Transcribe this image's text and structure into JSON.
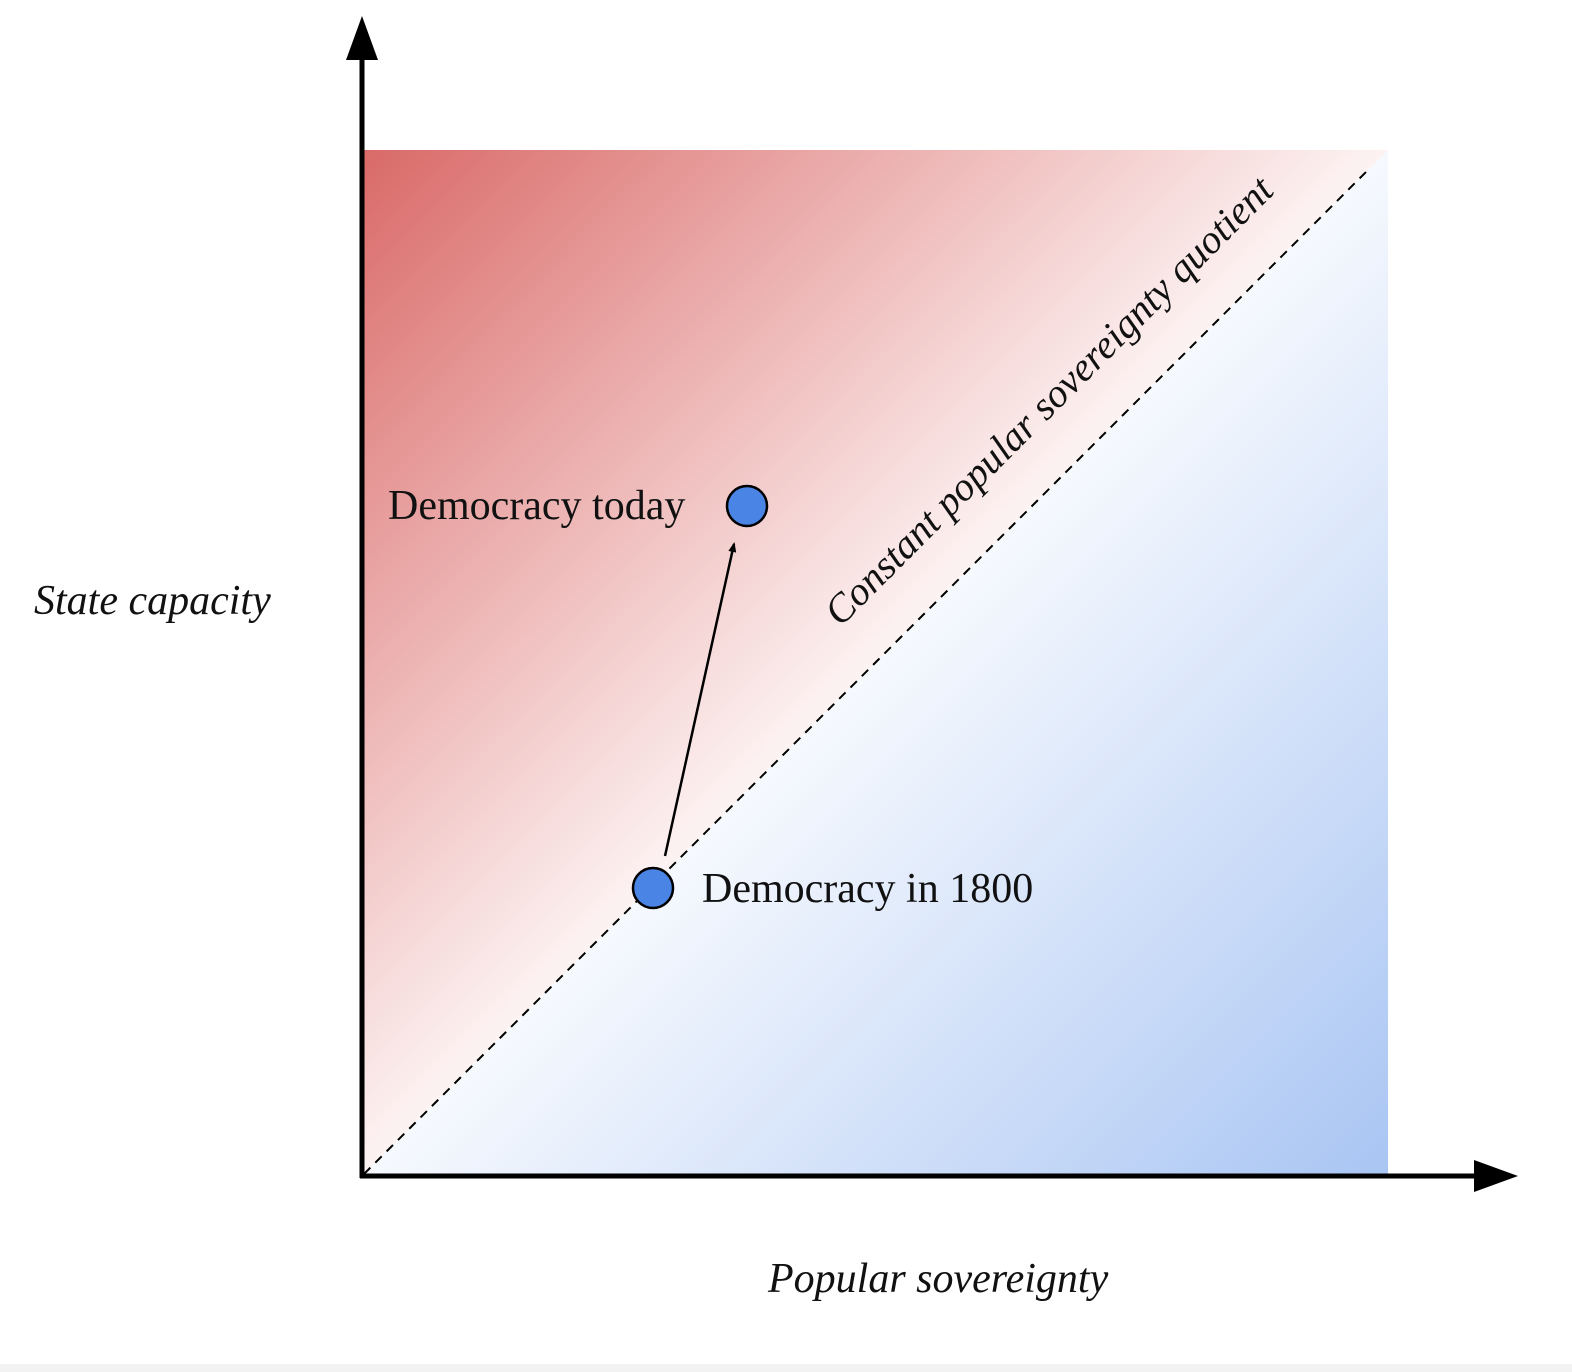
{
  "diagram": {
    "x_axis_label": "Popular sovereignty",
    "y_axis_label": "State capacity",
    "diagonal_label": "Constant popular sovereignty quotient",
    "points": [
      {
        "id": "democracy-today",
        "label": "Democracy today"
      },
      {
        "id": "democracy-1800",
        "label": "Democracy in 1800"
      }
    ],
    "arrow": {
      "from": "democracy-1800",
      "to": "democracy-today"
    },
    "colors": {
      "upper_region": "#d96a68",
      "lower_region": "#a9c5f3",
      "point_fill": "#4a84e4",
      "axis": "#000000"
    }
  }
}
